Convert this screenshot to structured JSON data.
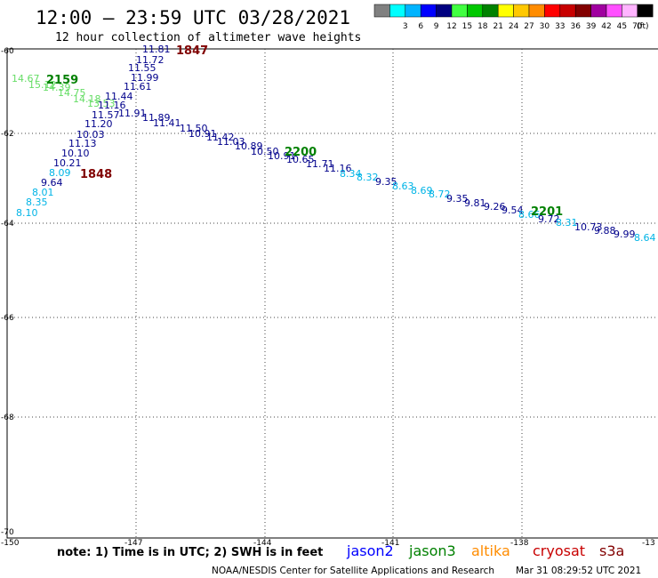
{
  "header": {
    "title": "12:00 – 23:59 UTC 03/28/2021",
    "subtitle": "12 hour collection of altimeter wave heights"
  },
  "colorbar": {
    "unit": "(ft)",
    "swatches": [
      {
        "color": "#808080",
        "label": ""
      },
      {
        "color": "#00ffff",
        "label": "3"
      },
      {
        "color": "#00b4ff",
        "label": "6"
      },
      {
        "color": "#0000ff",
        "label": "9"
      },
      {
        "color": "#000080",
        "label": "12"
      },
      {
        "color": "#40ff40",
        "label": "15"
      },
      {
        "color": "#00c800",
        "label": "18"
      },
      {
        "color": "#008200",
        "label": "21"
      },
      {
        "color": "#ffff00",
        "label": "24"
      },
      {
        "color": "#ffc800",
        "label": "27"
      },
      {
        "color": "#ff8c00",
        "label": "30"
      },
      {
        "color": "#ff0000",
        "label": "33"
      },
      {
        "color": "#c80000",
        "label": "36"
      },
      {
        "color": "#820000",
        "label": "39"
      },
      {
        "color": "#a000a0",
        "label": "42"
      },
      {
        "color": "#ff50ff",
        "label": "45"
      },
      {
        "color": "#ffb4ff",
        "label": "70"
      },
      {
        "color": "#000000",
        "label": ""
      }
    ]
  },
  "axes": {
    "lat_ticks": [
      "-60",
      "-62",
      "-64",
      "-66",
      "-68",
      "-70"
    ],
    "lon_ticks": [
      "-150",
      "-147",
      "-144",
      "-141",
      "-138",
      "-13"
    ]
  },
  "colors": {
    "navy": "#00008b",
    "cyan": "#00b4e6",
    "lightgreen": "#66dd66",
    "time_green": "#008000",
    "time_red": "#800000"
  },
  "time_labels": [
    {
      "text": "1847",
      "color": "#800000"
    },
    {
      "text": "2159",
      "color": "#008000"
    },
    {
      "text": "1848",
      "color": "#800000"
    },
    {
      "text": "2200",
      "color": "#008000"
    },
    {
      "text": "2201",
      "color": "#008000"
    }
  ],
  "track_a": [
    {
      "v": "11.81",
      "c": "navy"
    },
    {
      "v": "11.72",
      "c": "navy"
    },
    {
      "v": "11.55",
      "c": "navy"
    },
    {
      "v": "11.99",
      "c": "navy"
    },
    {
      "v": "11.61",
      "c": "navy"
    },
    {
      "v": "11.44",
      "c": "navy"
    },
    {
      "v": "11.16",
      "c": "navy"
    },
    {
      "v": "11.57",
      "c": "navy"
    },
    {
      "v": "11.20",
      "c": "navy"
    },
    {
      "v": "10.03",
      "c": "navy"
    },
    {
      "v": "11.13",
      "c": "navy"
    },
    {
      "v": "10.10",
      "c": "navy"
    },
    {
      "v": "10.21",
      "c": "navy"
    },
    {
      "v": "8.09",
      "c": "cyan"
    },
    {
      "v": "9.64",
      "c": "navy"
    },
    {
      "v": "8.01",
      "c": "cyan"
    },
    {
      "v": "8.35",
      "c": "cyan"
    },
    {
      "v": "8.10",
      "c": "cyan"
    }
  ],
  "track_b": [
    {
      "v": "14.67",
      "c": "lightgreen"
    },
    {
      "v": "15.12",
      "c": "lightgreen"
    },
    {
      "v": "14.39",
      "c": "lightgreen"
    },
    {
      "v": "14.75",
      "c": "lightgreen"
    },
    {
      "v": "14.18",
      "c": "lightgreen"
    },
    {
      "v": "13.53",
      "c": "lightgreen"
    }
  ],
  "track_c": [
    {
      "v": "11.91",
      "c": "navy"
    },
    {
      "v": "11.89",
      "c": "navy"
    },
    {
      "v": "11.41",
      "c": "navy"
    },
    {
      "v": "11.50",
      "c": "navy"
    },
    {
      "v": "10.91",
      "c": "navy"
    },
    {
      "v": "11.42",
      "c": "navy"
    },
    {
      "v": "11.03",
      "c": "navy"
    },
    {
      "v": "10.89",
      "c": "navy"
    },
    {
      "v": "10.50",
      "c": "navy"
    },
    {
      "v": "10.91",
      "c": "navy"
    },
    {
      "v": "10.65",
      "c": "navy"
    },
    {
      "v": "11.71",
      "c": "navy"
    },
    {
      "v": "11.16",
      "c": "navy"
    },
    {
      "v": "8.34",
      "c": "cyan"
    },
    {
      "v": "8.32",
      "c": "cyan"
    },
    {
      "v": "9.35",
      "c": "navy"
    },
    {
      "v": "8.63",
      "c": "cyan"
    },
    {
      "v": "8.69",
      "c": "cyan"
    },
    {
      "v": "8.72",
      "c": "cyan"
    },
    {
      "v": "9.35",
      "c": "navy"
    },
    {
      "v": "9.81",
      "c": "navy"
    },
    {
      "v": "9.26",
      "c": "navy"
    },
    {
      "v": "9.54",
      "c": "navy"
    },
    {
      "v": "8.66",
      "c": "cyan"
    },
    {
      "v": "9.72",
      "c": "navy"
    },
    {
      "v": "8.31",
      "c": "cyan"
    },
    {
      "v": "10.73",
      "c": "navy"
    },
    {
      "v": "9.88",
      "c": "navy"
    },
    {
      "v": "9.99",
      "c": "navy"
    },
    {
      "v": "8.64",
      "c": "cyan"
    }
  ],
  "footer": {
    "note": "note: 1) Time is in UTC; 2) SWH is in feet",
    "satellites": [
      {
        "name": "jason2",
        "color": "#0000ff"
      },
      {
        "name": "jason3",
        "color": "#008000"
      },
      {
        "name": "altika",
        "color": "#ff8c00"
      },
      {
        "name": "cryosat",
        "color": "#c80000"
      },
      {
        "name": "s3a",
        "color": "#820000"
      }
    ],
    "credit": "NOAA/NESDIS Center for Satellite Applications and Research",
    "timestamp": "Mar 31 08:29:52 UTC 2021"
  }
}
